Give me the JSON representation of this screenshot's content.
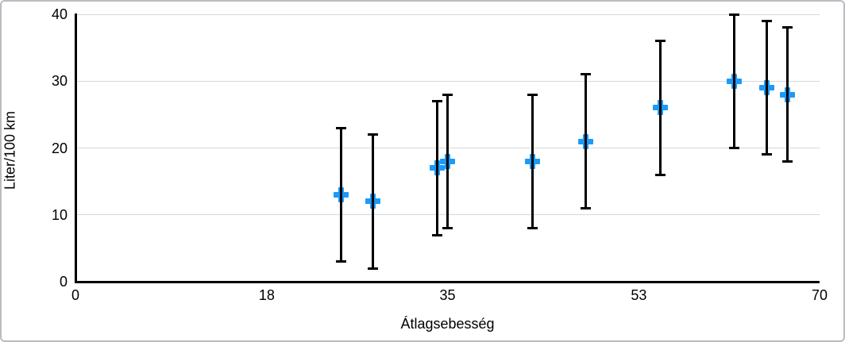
{
  "chart_data": {
    "type": "scatter",
    "title": "",
    "xlabel": "Átlagsebesség",
    "ylabel": "Liter/100 km",
    "xlim": [
      0,
      70
    ],
    "ylim": [
      0,
      40
    ],
    "x_ticks": [
      "0",
      "18",
      "35",
      "53",
      "70"
    ],
    "x_tick_values": [
      0,
      18,
      35,
      53,
      70
    ],
    "y_ticks": [
      "0",
      "10",
      "20",
      "30",
      "40"
    ],
    "y_tick_values": [
      0,
      10,
      20,
      30,
      40
    ],
    "grid": "horizontal gridlines only",
    "legend": "none",
    "marker": "plus",
    "error_bars": "vertical, symmetric ±10 on every point",
    "colors": {
      "marker": "#1b9af7",
      "axis": "#000000",
      "gridline": "#d8d8d8",
      "background": "#ffffff",
      "frame_border": "#b9bcc1"
    },
    "series": [
      {
        "name": "Liter/100 km",
        "points": [
          {
            "x": 25,
            "y": 13,
            "error_minus": 10,
            "error_plus": 10
          },
          {
            "x": 28,
            "y": 12,
            "error_minus": 10,
            "error_plus": 10
          },
          {
            "x": 34,
            "y": 17,
            "error_minus": 10,
            "error_plus": 10
          },
          {
            "x": 35,
            "y": 18,
            "error_minus": 10,
            "error_plus": 10
          },
          {
            "x": 43,
            "y": 18,
            "error_minus": 10,
            "error_plus": 10
          },
          {
            "x": 48,
            "y": 21,
            "error_minus": 10,
            "error_plus": 10
          },
          {
            "x": 55,
            "y": 26,
            "error_minus": 10,
            "error_plus": 10
          },
          {
            "x": 62,
            "y": 30,
            "error_minus": 10,
            "error_plus": 10
          },
          {
            "x": 65,
            "y": 29,
            "error_minus": 10,
            "error_plus": 10
          },
          {
            "x": 67,
            "y": 28,
            "error_minus": 10,
            "error_plus": 10
          }
        ]
      }
    ]
  }
}
